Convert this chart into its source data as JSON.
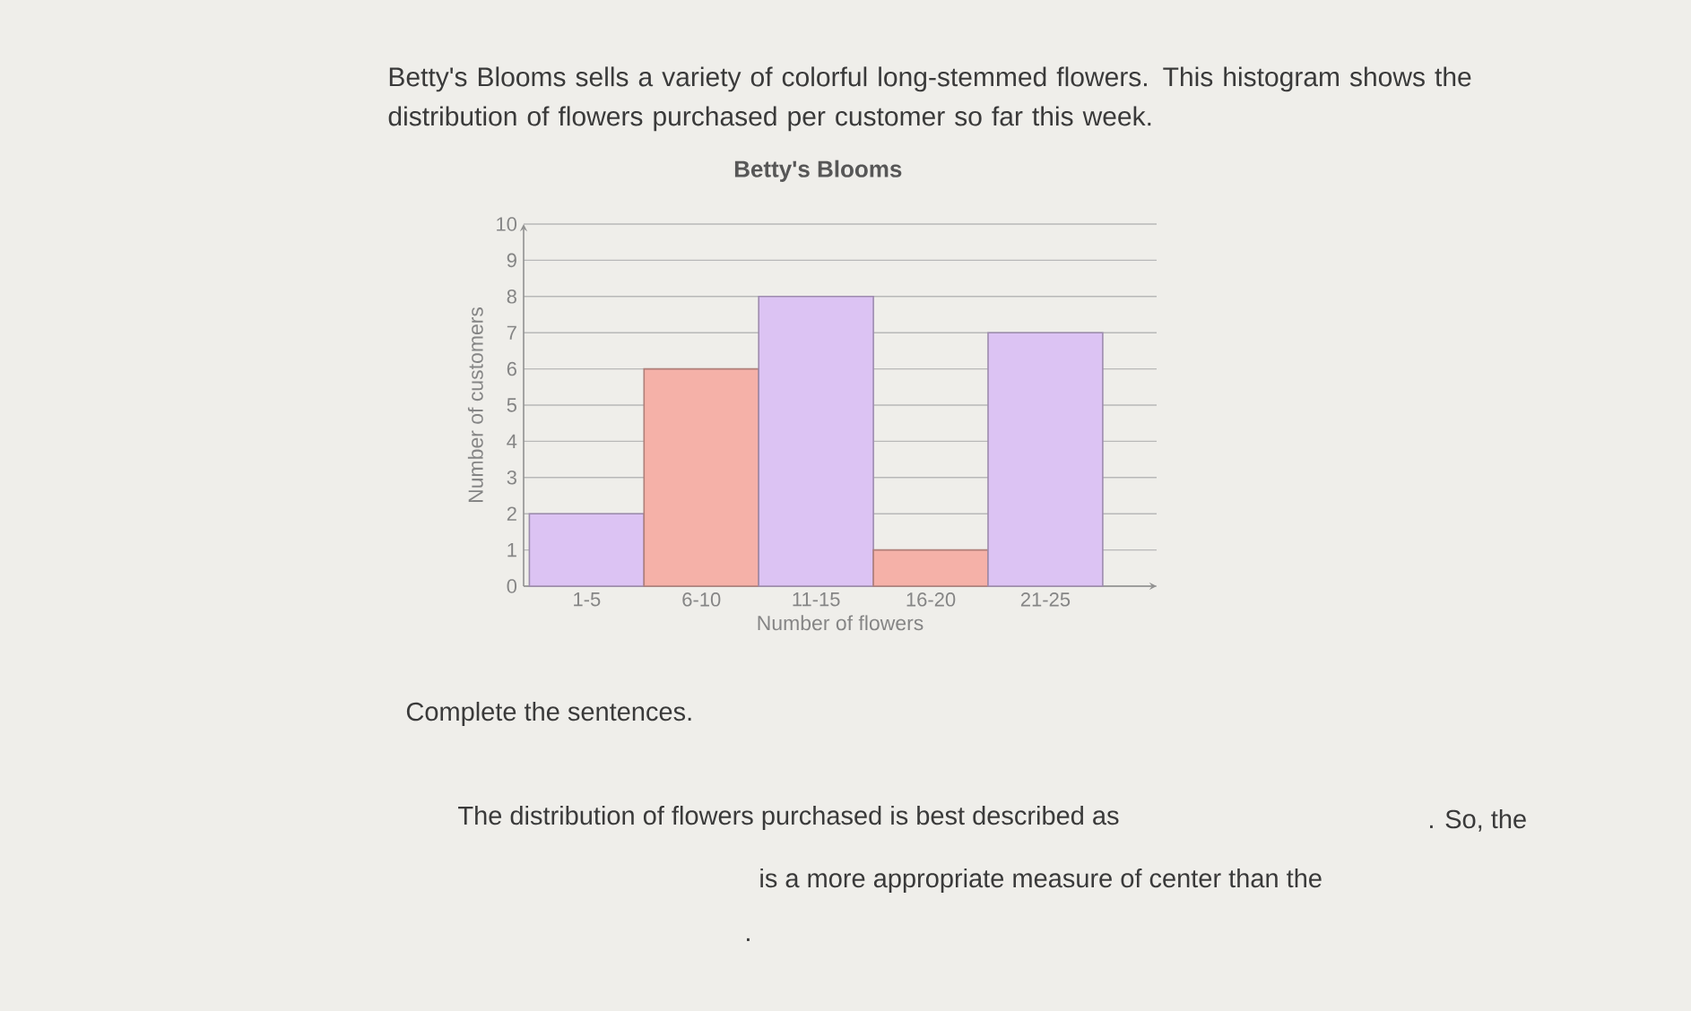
{
  "chart_data": {
    "type": "bar",
    "title": "Betty's Blooms",
    "xlabel": "Number of flowers",
    "ylabel": "Number of customers",
    "categories": [
      "1-5",
      "6-10",
      "11-15",
      "16-20",
      "21-25"
    ],
    "values": [
      2,
      6,
      8,
      1,
      7
    ],
    "colors": [
      "#dcc3f3",
      "#f5b1a8",
      "#dcc3f3",
      "#f5b1a8",
      "#dcc3f3"
    ],
    "ylim": [
      0,
      10
    ],
    "yticks": [
      0,
      1,
      2,
      3,
      4,
      5,
      6,
      7,
      8,
      9,
      10
    ],
    "grid": "y",
    "annotations": [
      "Betty's Blooms sells a variety of colorful long-stemmed flowers. This histogram shows the distribution of flowers purchased per customer so far this week.",
      "Complete the sentences.",
      "The distribution of flowers purchased is best described as",
      ". So, the",
      "is a more appropriate measure of center than the",
      "."
    ]
  }
}
